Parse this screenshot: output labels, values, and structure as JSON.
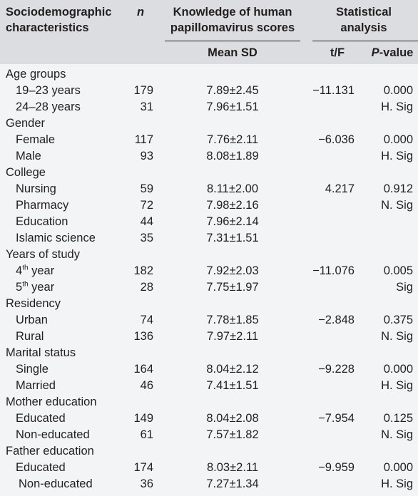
{
  "headers": {
    "characteristics": "Sociodemographic characteristics",
    "n": "n",
    "knowledge": "Knowledge of human papillomavirus scores",
    "mean_sd": "Mean SD",
    "stat": "Statistical analysis",
    "tf": "t/F",
    "p_label": "P",
    "p_suffix": "-value"
  },
  "groups": [
    {
      "title": "Age groups",
      "rows": [
        {
          "label": "19–23 years",
          "n": "179",
          "mean_sd": "7.89±2.45",
          "tf": "−11.131",
          "p": "0.000"
        },
        {
          "label": "24–28 years",
          "n": "31",
          "mean_sd": "7.96±1.51",
          "tf": "",
          "p": "H. Sig"
        }
      ]
    },
    {
      "title": "Gender",
      "rows": [
        {
          "label": "Female",
          "n": "117",
          "mean_sd": "7.76±2.11",
          "tf": "−6.036",
          "p": "0.000"
        },
        {
          "label": "Male",
          "n": "93",
          "mean_sd": "8.08±1.89",
          "tf": "",
          "p": "H. Sig"
        }
      ]
    },
    {
      "title": "College",
      "rows": [
        {
          "label": "Nursing",
          "n": "59",
          "mean_sd": "8.11±2.00",
          "tf": "4.217",
          "p": "0.912"
        },
        {
          "label": "Pharmacy",
          "n": "72",
          "mean_sd": "7.98±2.16",
          "tf": "",
          "p": "N. Sig"
        },
        {
          "label": "Education",
          "n": "44",
          "mean_sd": "7.96±2.14",
          "tf": "",
          "p": ""
        },
        {
          "label": "Islamic science",
          "n": "35",
          "mean_sd": "7.31±1.51",
          "tf": "",
          "p": ""
        }
      ]
    },
    {
      "title": "Years of study",
      "rows": [
        {
          "label": "4",
          "sup": "th",
          "suffix": " year",
          "n": "182",
          "mean_sd": "7.92±2.03",
          "tf": "−11.076",
          "p": "0.005"
        },
        {
          "label": "5",
          "sup": "th",
          "suffix": " year",
          "n": "28",
          "mean_sd": "7.75±1.97",
          "tf": "",
          "p": "Sig"
        }
      ]
    },
    {
      "title": "Residency",
      "rows": [
        {
          "label": "Urban",
          "n": "74",
          "mean_sd": "7.78±1.85",
          "tf": "−2.848",
          "p": "0.375"
        },
        {
          "label": "Rural",
          "n": "136",
          "mean_sd": "7.97±2.11",
          "tf": "",
          "p": "N. Sig"
        }
      ]
    },
    {
      "title": "Marital status",
      "rows": [
        {
          "label": "Single",
          "n": "164",
          "mean_sd": "8.04±2.12",
          "tf": "−9.228",
          "p": "0.000"
        },
        {
          "label": "Married",
          "n": "46",
          "mean_sd": "7.41±1.51",
          "tf": "",
          "p": "H. Sig"
        }
      ]
    },
    {
      "title": "Mother education",
      "rows": [
        {
          "label": "Educated",
          "n": "149",
          "mean_sd": "8.04±2.08",
          "tf": "−7.954",
          "p": "0.125"
        },
        {
          "label": "Non-educated",
          "n": "61",
          "mean_sd": "7.57±1.82",
          "tf": "",
          "p": "N. Sig"
        }
      ]
    },
    {
      "title": "Father education",
      "rows": [
        {
          "label": "Educated",
          "n": "174",
          "mean_sd": "8.03±2.11",
          "tf": "−9.959",
          "p": "0.000"
        },
        {
          "label": "Non-educated",
          "n": "36",
          "mean_sd": "7.27±1.34",
          "tf": "",
          "p": "H. Sig"
        }
      ]
    }
  ]
}
